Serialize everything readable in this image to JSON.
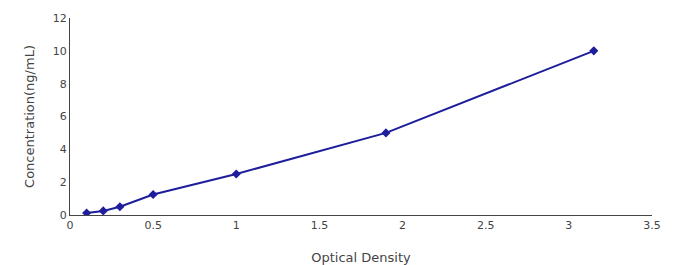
{
  "chart_data": {
    "type": "line",
    "x": [
      0.1,
      0.2,
      0.3,
      0.5,
      1.0,
      1.9,
      3.15
    ],
    "values": [
      0.125,
      0.25,
      0.5,
      1.25,
      2.5,
      5.0,
      10.0
    ],
    "color": "#1e1e9c",
    "marker": "diamond",
    "line_style": "solid",
    "xlabel": "Optical Density",
    "ylabel": "Concentration(ng/mL)",
    "xlim": [
      0,
      3.5
    ],
    "ylim": [
      0,
      12
    ],
    "xticks": [
      0,
      0.5,
      1,
      1.5,
      2,
      2.5,
      3,
      3.5
    ],
    "yticks": [
      0,
      2,
      4,
      6,
      8,
      10,
      12
    ],
    "grid": false
  }
}
